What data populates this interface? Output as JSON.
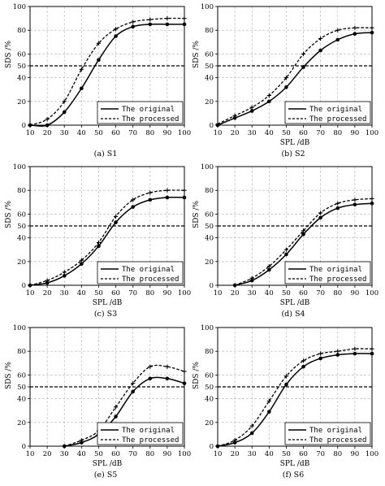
{
  "chart_data": [
    {
      "type": "line",
      "caption": "(a)  S1",
      "xlabel": "",
      "ylabel": "SDS /%",
      "x": [
        10,
        20,
        30,
        40,
        50,
        60,
        70,
        80,
        90,
        100
      ],
      "xlim": [
        10,
        100
      ],
      "ylim": [
        0,
        100
      ],
      "yticks": [
        "0",
        "20",
        "40",
        "50",
        "60",
        "80",
        "100"
      ],
      "grid": true,
      "reference_line": 50,
      "legend": "bottom-right",
      "series": [
        {
          "name": "The original",
          "style": "solid",
          "values": [
            0,
            0,
            11,
            31,
            55,
            75,
            83,
            85,
            85,
            85
          ]
        },
        {
          "name": "The processed",
          "style": "dashed",
          "values": [
            0,
            5,
            20,
            47,
            69,
            81,
            87,
            89,
            90,
            90
          ]
        }
      ]
    },
    {
      "type": "line",
      "caption": "(b)  S2",
      "xlabel": "SPL /dB",
      "ylabel": "SDS /%",
      "x": [
        10,
        20,
        30,
        40,
        50,
        60,
        70,
        80,
        90,
        100
      ],
      "xlim": [
        10,
        100
      ],
      "ylim": [
        0,
        100
      ],
      "yticks": [
        "0",
        "20",
        "40",
        "50",
        "60",
        "80",
        "100"
      ],
      "grid": true,
      "reference_line": 50,
      "legend": "bottom-right",
      "series": [
        {
          "name": "The original",
          "style": "solid",
          "values": [
            0,
            6,
            12,
            20,
            32,
            49,
            63,
            72,
            77,
            78
          ]
        },
        {
          "name": "The processed",
          "style": "dashed",
          "values": [
            1,
            8,
            15,
            25,
            40,
            60,
            73,
            80,
            82,
            82
          ]
        }
      ]
    },
    {
      "type": "line",
      "caption": "(c)  S3",
      "xlabel": "SPL /dB",
      "ylabel": "SDS /%",
      "x": [
        10,
        20,
        30,
        40,
        50,
        60,
        70,
        80,
        90,
        100
      ],
      "xlim": [
        10,
        100
      ],
      "ylim": [
        0,
        100
      ],
      "yticks": [
        "0",
        "20",
        "40",
        "50",
        "60",
        "80",
        "100"
      ],
      "grid": true,
      "reference_line": 50,
      "legend": "bottom-right",
      "series": [
        {
          "name": "The original",
          "style": "solid",
          "values": [
            0,
            2,
            8,
            18,
            33,
            53,
            66,
            72,
            74,
            74
          ]
        },
        {
          "name": "The processed",
          "style": "dashed",
          "values": [
            0,
            4,
            11,
            21,
            36,
            58,
            72,
            78,
            80,
            80
          ]
        }
      ]
    },
    {
      "type": "line",
      "caption": "(d)  S4",
      "xlabel": "SPL /dB",
      "ylabel": "SDS /%",
      "x": [
        20,
        30,
        40,
        50,
        60,
        70,
        80,
        90,
        100
      ],
      "xlim": [
        10,
        100
      ],
      "ylim": [
        0,
        100
      ],
      "yticks": [
        "0",
        "20",
        "40",
        "50",
        "60",
        "80",
        "100"
      ],
      "grid": true,
      "reference_line": 50,
      "legend": "bottom-right",
      "series": [
        {
          "name": "The original",
          "style": "solid",
          "values": [
            0,
            4,
            13,
            26,
            43,
            57,
            65,
            68,
            69
          ]
        },
        {
          "name": "The processed",
          "style": "dashed",
          "values": [
            0,
            6,
            16,
            30,
            46,
            61,
            69,
            72,
            73
          ]
        }
      ]
    },
    {
      "type": "line",
      "caption": "(e)  S5",
      "xlabel": "SPL /dB",
      "ylabel": "SDS /%",
      "x": [
        30,
        40,
        50,
        60,
        70,
        80,
        90,
        100
      ],
      "xlim": [
        10,
        100
      ],
      "ylim": [
        0,
        100
      ],
      "yticks": [
        "0",
        "20",
        "40",
        "50",
        "60",
        "80",
        "100"
      ],
      "grid": true,
      "reference_line": 50,
      "legend": "bottom-right",
      "series": [
        {
          "name": "The original",
          "style": "solid",
          "values": [
            0,
            3,
            10,
            25,
            46,
            57,
            57,
            53
          ]
        },
        {
          "name": "The processed",
          "style": "dashed",
          "values": [
            0,
            5,
            13,
            33,
            53,
            67,
            67,
            63
          ]
        }
      ]
    },
    {
      "type": "line",
      "caption": "(f)  S6",
      "xlabel": "SPL /dB",
      "ylabel": "SDS /%",
      "x": [
        10,
        20,
        30,
        40,
        50,
        60,
        70,
        80,
        90,
        100
      ],
      "xlim": [
        10,
        100
      ],
      "ylim": [
        0,
        100
      ],
      "yticks": [
        "0",
        "20",
        "40",
        "50",
        "60",
        "80",
        "100"
      ],
      "grid": true,
      "reference_line": 50,
      "legend": "bottom-right",
      "series": [
        {
          "name": "The original",
          "style": "solid",
          "values": [
            0,
            3,
            11,
            29,
            52,
            67,
            74,
            77,
            78,
            78
          ]
        },
        {
          "name": "The processed",
          "style": "dashed",
          "values": [
            0,
            5,
            17,
            38,
            59,
            72,
            78,
            80,
            82,
            82
          ]
        }
      ]
    }
  ]
}
